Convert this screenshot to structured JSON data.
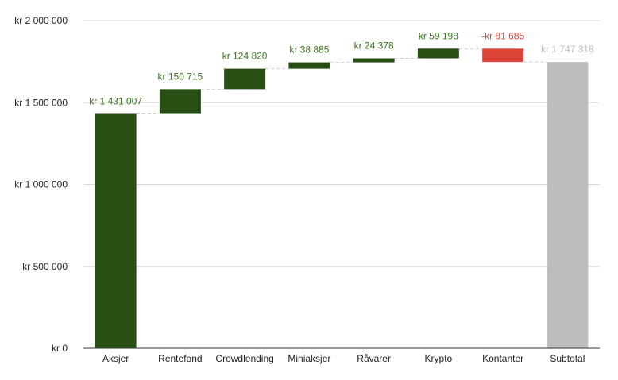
{
  "chart_data": {
    "type": "bar",
    "subtype": "waterfall",
    "title": "",
    "xlabel": "",
    "ylabel": "",
    "ylim": [
      0,
      2000000
    ],
    "yticks": [
      0,
      500000,
      1000000,
      1500000,
      2000000
    ],
    "ytick_labels": [
      "kr   0",
      "kr  500 000",
      "kr 1 000 000",
      "kr 1 500 000",
      "kr 2 000 000"
    ],
    "grid": true,
    "legend": "none",
    "colors": {
      "increase": "#274e13",
      "decrease": "#db4437",
      "total": "#bdbdbd",
      "increase_label": "#38761d",
      "decrease_label": "#db4437",
      "total_label": "#bdbdbd",
      "grid": "#d9d9d9",
      "connector": "#cccccc",
      "axis": "#333333"
    },
    "categories": [
      "Aksjer",
      "Rentefond",
      "Crowdlending",
      "Miniaksjer",
      "Råvarer",
      "Krypto",
      "Kontanter",
      "Subtotal"
    ],
    "values": [
      1431007,
      150715,
      124820,
      38885,
      24378,
      59198,
      -81685,
      1747318
    ],
    "kinds": [
      "increase",
      "increase",
      "increase",
      "increase",
      "increase",
      "increase",
      "decrease",
      "total"
    ],
    "data_labels": [
      "kr 1 431 007",
      "kr  150 715",
      "kr  124 820",
      "kr  38 885",
      "kr  24 378",
      "kr  59 198",
      "-kr  81 685",
      "kr 1 747 318"
    ]
  }
}
